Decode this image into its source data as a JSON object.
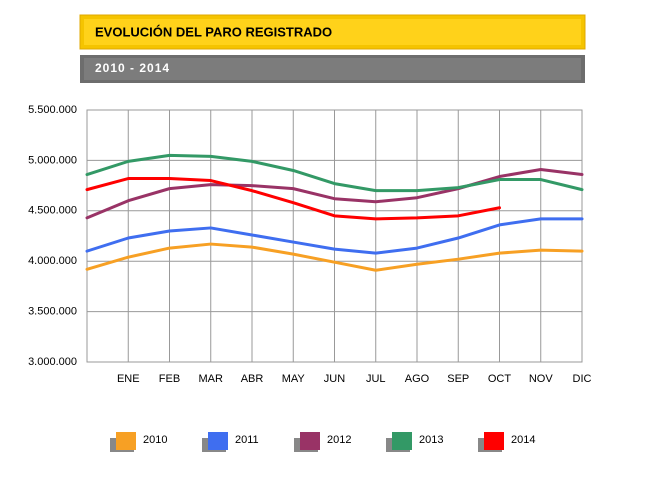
{
  "chart_data": {
    "type": "line",
    "title": "EVOLUCIÓN DEL PARO REGISTRADO",
    "subtitle": "2010 - 2014",
    "categories": [
      null,
      "ENE",
      "FEB",
      "MAR",
      "ABR",
      "MAY",
      "JUN",
      "JUL",
      "AGO",
      "SEP",
      "OCT",
      "NOV",
      "DIC"
    ],
    "series": [
      {
        "name": "2010",
        "color": "#f7a024",
        "values": [
          3920000,
          4040000,
          4130000,
          4170000,
          4140000,
          4070000,
          3990000,
          3910000,
          3970000,
          4020000,
          4080000,
          4110000,
          4100000
        ]
      },
      {
        "name": "2011",
        "color": "#3f6ef0",
        "values": [
          4100000,
          4230000,
          4300000,
          4330000,
          4260000,
          4190000,
          4120000,
          4080000,
          4130000,
          4230000,
          4360000,
          4420000,
          4420000
        ]
      },
      {
        "name": "2012",
        "color": "#993366",
        "values": [
          4430000,
          4600000,
          4720000,
          4760000,
          4750000,
          4720000,
          4620000,
          4590000,
          4630000,
          4720000,
          4840000,
          4910000,
          4860000
        ]
      },
      {
        "name": "2013",
        "color": "#339966",
        "values": [
          4860000,
          4990000,
          5050000,
          5040000,
          4990000,
          4900000,
          4770000,
          4700000,
          4700000,
          4730000,
          4810000,
          4810000,
          4710000
        ]
      },
      {
        "name": "2014",
        "color": "#ff0000",
        "values": [
          4710000,
          4820000,
          4820000,
          4800000,
          4700000,
          4580000,
          4450000,
          4420000,
          4430000,
          4450000,
          4530000,
          null,
          null
        ]
      }
    ],
    "ylim": [
      3000000,
      5500000
    ],
    "yticks": [
      {
        "value": 3000000,
        "label": "3.000.000"
      },
      {
        "value": 3500000,
        "label": "3.500.000"
      },
      {
        "value": 4000000,
        "label": "4.000.000"
      },
      {
        "value": 4500000,
        "label": "4.500.000"
      },
      {
        "value": 5000000,
        "label": "5.000.000"
      },
      {
        "value": 5500000,
        "label": "5.500.000"
      }
    ],
    "grid": true
  }
}
